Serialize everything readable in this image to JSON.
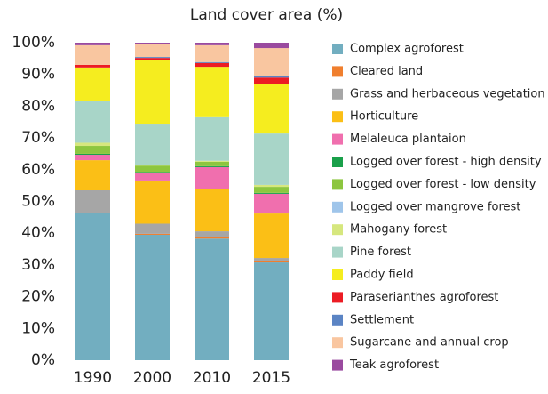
{
  "chart_data": {
    "type": "stacked_bar",
    "title": "Land cover area (%)",
    "categories": [
      "1990",
      "2000",
      "2010",
      "2015"
    ],
    "series": [
      {
        "name": "Complex agroforest",
        "color": "#72aec0",
        "values": [
          46.5,
          39.5,
          38.3,
          30.8
        ]
      },
      {
        "name": "Cleared land",
        "color": "#f07f2e",
        "values": [
          0,
          0.3,
          0.5,
          0.3
        ]
      },
      {
        "name": "Grass and herbaceous vegetation",
        "color": "#a6a6a6",
        "values": [
          7,
          3.2,
          1.8,
          1.1
        ]
      },
      {
        "name": "Horticulture",
        "color": "#fbbf16",
        "values": [
          9.5,
          13.6,
          13.4,
          14
        ]
      },
      {
        "name": "Melaleuca plantaion",
        "color": "#f06fae",
        "values": [
          1.7,
          2.4,
          6.8,
          6.2
        ]
      },
      {
        "name": "Logged over forest -  high density",
        "color": "#1aa04a",
        "values": [
          0.3,
          0.3,
          0.3,
          0.3
        ]
      },
      {
        "name": "Logged over forest -  low density",
        "color": "#8dc63f",
        "values": [
          2.5,
          2,
          1.4,
          1.9
        ]
      },
      {
        "name": "Logged over mangrove forest",
        "color": "#9fc5ea",
        "values": [
          0,
          0,
          0,
          0
        ]
      },
      {
        "name": "Mahogany forest",
        "color": "#d6e77e",
        "values": [
          1,
          0.3,
          0.3,
          0.6
        ]
      },
      {
        "name": "Pine forest",
        "color": "#a8d5c8",
        "values": [
          13.3,
          12.9,
          14,
          16.2
        ]
      },
      {
        "name": "Paddy field",
        "color": "#f5ed1f",
        "values": [
          10.4,
          19.9,
          15.6,
          15.7
        ]
      },
      {
        "name": "Paraserianthes agroforest",
        "color": "#ec1c24",
        "values": [
          0.8,
          0.8,
          1.2,
          1.9
        ]
      },
      {
        "name": "Settlement",
        "color": "#5b84c4",
        "values": [
          0,
          0.3,
          0.3,
          0.5
        ]
      },
      {
        "name": "Sugarcane and annual crop",
        "color": "#f9c6a0",
        "values": [
          6.2,
          4,
          5.3,
          8.8
        ]
      },
      {
        "name": "Teak agroforest",
        "color": "#9a4a9f",
        "values": [
          0.8,
          0.5,
          0.8,
          1.7
        ]
      }
    ],
    "ylim": [
      0,
      100
    ],
    "yticks": [
      {
        "value": 0,
        "label": "0%"
      },
      {
        "value": 10,
        "label": "10%"
      },
      {
        "value": 20,
        "label": "20%"
      },
      {
        "value": 30,
        "label": "30%"
      },
      {
        "value": 40,
        "label": "40%"
      },
      {
        "value": 50,
        "label": "50%"
      },
      {
        "value": 60,
        "label": "60%"
      },
      {
        "value": 70,
        "label": "70%"
      },
      {
        "value": 80,
        "label": "80%"
      },
      {
        "value": 90,
        "label": "90%"
      },
      {
        "value": 100,
        "label": "100%"
      }
    ],
    "legend": "right"
  }
}
